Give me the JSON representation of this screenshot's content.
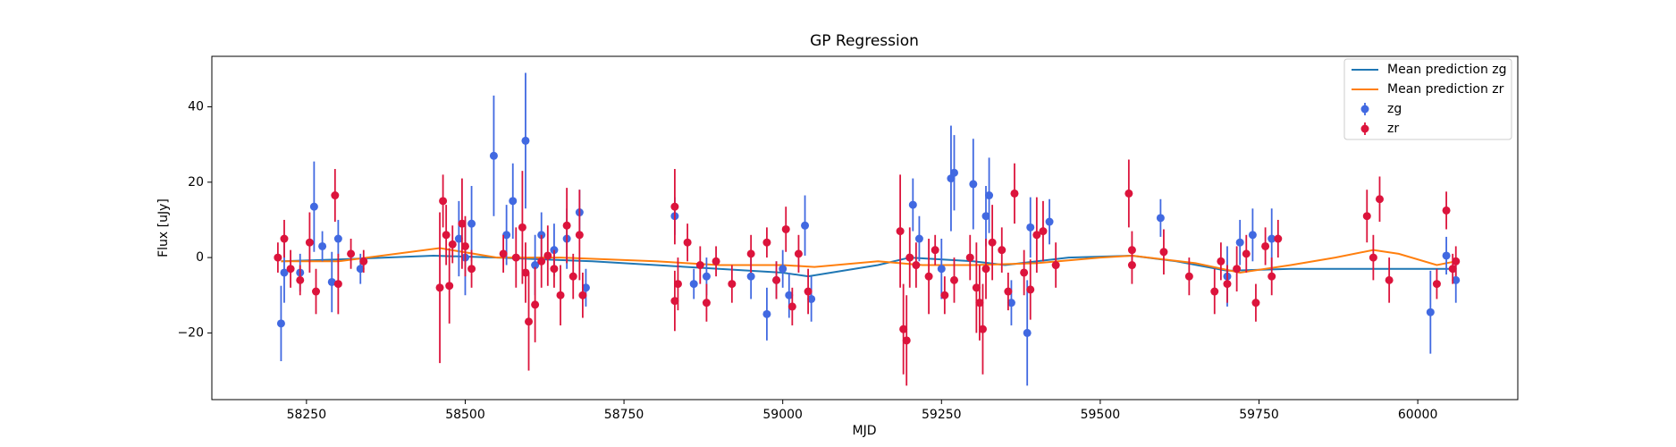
{
  "chart_data": {
    "type": "scatter",
    "title": "GP Regression",
    "x_label": "MJD",
    "y_label": "Flux [uJy]",
    "xlim": [
      58101,
      60157.5
    ],
    "ylim": [
      -37.7,
      53.4
    ],
    "xticks": [
      58250,
      58500,
      58750,
      59000,
      59250,
      59500,
      59750,
      60000
    ],
    "yticks": [
      {
        "value": -20,
        "label": "−20"
      },
      0,
      20,
      40
    ],
    "grid": false,
    "legend": "upper right",
    "series": [
      {
        "name": "Mean prediction zg",
        "type": "line",
        "color": "#1f77b4",
        "x": [
          58210,
          58300,
          58450,
          58550,
          58700,
          58900,
          59000,
          59040,
          59150,
          59200,
          59300,
          59350,
          59450,
          59550,
          59620,
          59700,
          59800,
          60000,
          60060
        ],
        "values": [
          -1,
          -0.5,
          0.5,
          0,
          -1,
          -3,
          -4,
          -5,
          -2,
          0,
          -1,
          -2,
          0,
          0.5,
          -1,
          -3.5,
          -3,
          -3,
          -3
        ]
      },
      {
        "name": "Mean prediction zr",
        "type": "line",
        "color": "#ff7f0e",
        "x": [
          58210,
          58300,
          58460,
          58550,
          58650,
          58800,
          58900,
          59000,
          59050,
          59150,
          59220,
          59300,
          59400,
          59500,
          59550,
          59650,
          59720,
          59800,
          59870,
          59930,
          59970,
          60030,
          60060
        ],
        "values": [
          -1,
          -1,
          2.5,
          0,
          0,
          -1,
          -2,
          -2,
          -2.5,
          -1,
          -2,
          -2,
          -1.5,
          0,
          0.5,
          -1.5,
          -4,
          -2,
          0,
          2,
          1,
          -2,
          -1
        ]
      },
      {
        "name": "zg",
        "type": "errorbar",
        "color": "#4169e1",
        "x": [
          58210,
          58215,
          58240,
          58262,
          58275,
          58290,
          58300,
          58335,
          58490,
          58500,
          58510,
          58545,
          58565,
          58575,
          58595,
          58610,
          58620,
          58640,
          58660,
          58680,
          58690,
          58830,
          58860,
          58880,
          58950,
          58975,
          58990,
          59000,
          59010,
          59035,
          59045,
          59205,
          59215,
          59250,
          59265,
          59270,
          59300,
          59320,
          59325,
          59360,
          59385,
          59390,
          59420,
          59595,
          59700,
          59720,
          59740,
          59770,
          60020,
          60045,
          60060
        ],
        "values": [
          -17.5,
          -4,
          -4,
          13.5,
          3,
          -6.5,
          5,
          -3,
          5,
          0,
          9,
          27,
          6,
          15,
          31,
          -2,
          6,
          2,
          5,
          12,
          -8,
          11,
          -7,
          -5,
          -5,
          -15,
          -6,
          -3,
          -10,
          8.5,
          -11,
          14,
          5,
          -3,
          21,
          22.5,
          19.5,
          11,
          16.5,
          -12,
          -20,
          8,
          9.5,
          10.5,
          -5,
          4,
          6,
          5,
          -14.5,
          0.5,
          -6
        ],
        "errors": [
          10,
          8,
          5,
          12,
          4,
          8,
          5,
          4,
          10,
          10,
          10,
          16,
          8,
          10,
          18,
          8,
          6,
          7,
          8,
          6,
          5,
          5,
          4,
          5,
          6,
          7,
          5,
          5,
          6,
          8,
          6,
          7,
          6,
          8,
          14,
          10,
          12,
          8,
          10,
          6,
          14,
          8,
          6,
          5,
          8,
          6,
          7,
          8,
          11,
          5,
          6
        ]
      },
      {
        "name": "zr",
        "type": "errorbar",
        "color": "#dc143c",
        "x": [
          58205,
          58215,
          58225,
          58240,
          58255,
          58265,
          58295,
          58300,
          58320,
          58340,
          58460,
          58465,
          58470,
          58475,
          58480,
          58495,
          58500,
          58510,
          58560,
          58580,
          58590,
          58595,
          58600,
          58610,
          58620,
          58630,
          58640,
          58650,
          58660,
          58670,
          58680,
          58685,
          58830,
          58835,
          58830,
          58850,
          58870,
          58880,
          58895,
          58920,
          58950,
          58975,
          58990,
          59005,
          59015,
          59025,
          59040,
          59185,
          59190,
          59195,
          59200,
          59210,
          59230,
          59240,
          59255,
          59270,
          59295,
          59305,
          59310,
          59315,
          59320,
          59330,
          59345,
          59355,
          59365,
          59380,
          59390,
          59400,
          59410,
          59430,
          59545,
          59550,
          59550,
          59600,
          59640,
          59680,
          59690,
          59700,
          59715,
          59730,
          59745,
          59760,
          59770,
          59780,
          59920,
          59930,
          59940,
          59955,
          60030,
          60045,
          60055,
          60060
        ],
        "values": [
          0,
          5,
          -3,
          -6,
          4,
          -9,
          16.5,
          -7,
          1,
          -1,
          -8,
          15,
          6,
          -7.5,
          3.5,
          9,
          3,
          -3,
          1,
          0,
          8,
          -4,
          -17,
          -12.5,
          -1,
          0.5,
          -3,
          -10,
          8.5,
          -5,
          6,
          -10,
          13.5,
          -7,
          -11.5,
          4,
          -2,
          -12,
          -1,
          -7,
          1,
          4,
          -6,
          7.5,
          -13,
          1,
          -9,
          7,
          -19,
          -22,
          0,
          -2,
          -5,
          2,
          -10,
          -6,
          0,
          -8,
          -12,
          -19,
          -3,
          4,
          2,
          -9,
          17,
          -4,
          -8.5,
          6,
          7,
          -2,
          17,
          2,
          -2,
          1.5,
          -5,
          -9,
          -1,
          -7,
          -3,
          1,
          -12,
          3,
          -5,
          5,
          11,
          0,
          15.5,
          -6,
          -7,
          12.5,
          -3,
          -1
        ],
        "errors": [
          4,
          5,
          5,
          4,
          8,
          6,
          7,
          8,
          4,
          3,
          20,
          7,
          8,
          10,
          5,
          12,
          8,
          5,
          5,
          8,
          15,
          8,
          13,
          10,
          7,
          8,
          5,
          8,
          10,
          6,
          12,
          6,
          10,
          7,
          8,
          5,
          5,
          5,
          4,
          5,
          5,
          4,
          5,
          6,
          5,
          5,
          6,
          15,
          12,
          12,
          8,
          6,
          10,
          4,
          5,
          6,
          6,
          12,
          10,
          12,
          8,
          10,
          6,
          5,
          8,
          6,
          8,
          10,
          8,
          6,
          9,
          5,
          5,
          6,
          5,
          6,
          5,
          5,
          6,
          5,
          5,
          5,
          5,
          5,
          7,
          6,
          6,
          6,
          4,
          5,
          4,
          4
        ]
      }
    ]
  }
}
